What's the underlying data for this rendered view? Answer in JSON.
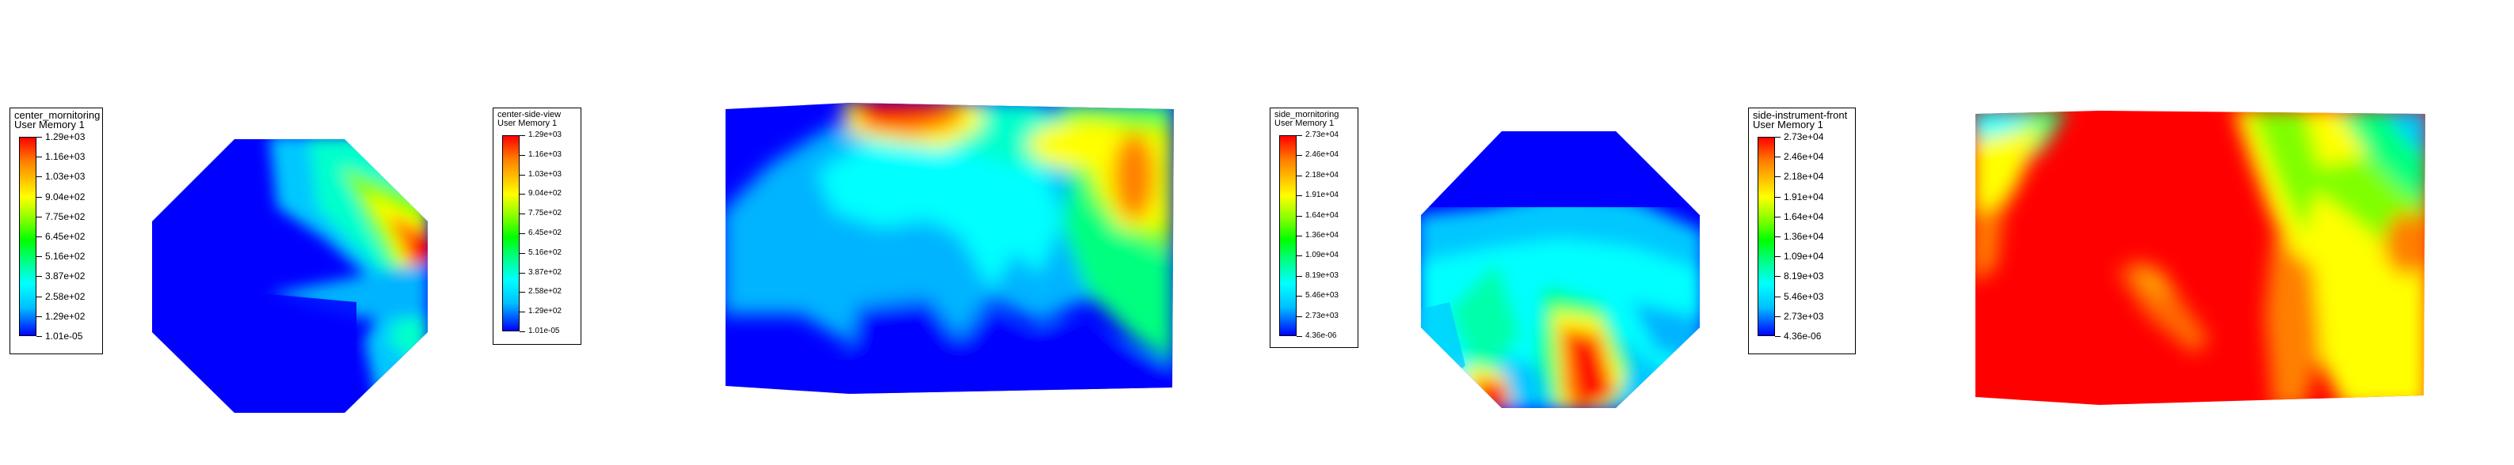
{
  "panels": [
    {
      "legend": {
        "title_line1": "center_mornitoring",
        "title_line2": "User Memory 1",
        "ticks": [
          "1.29e+03",
          "1.16e+03",
          "1.03e+03",
          "9.04e+02",
          "7.75e+02",
          "6.45e+02",
          "5.16e+02",
          "3.87e+02",
          "2.58e+02",
          "1.29e+02",
          "1.01e-05"
        ]
      }
    },
    {
      "legend": {
        "title_line1": "center-side-view",
        "title_line2": "User Memory 1",
        "ticks": [
          "1.29e+03",
          "1.16e+03",
          "1.03e+03",
          "9.04e+02",
          "7.75e+02",
          "6.45e+02",
          "5.16e+02",
          "3.87e+02",
          "2.58e+02",
          "1.29e+02",
          "1.01e-05"
        ]
      }
    },
    {
      "legend": {
        "title_line1": "side_mornitoring",
        "title_line2": "User Memory 1",
        "ticks": [
          "2.73e+04",
          "2.46e+04",
          "2.18e+04",
          "1.91e+04",
          "1.64e+04",
          "1.36e+04",
          "1.09e+04",
          "8.19e+03",
          "5.46e+03",
          "2.73e+03",
          "4.36e-06"
        ]
      }
    },
    {
      "legend": {
        "title_line1": "side-instrument-front",
        "title_line2": "User Memory 1",
        "ticks": [
          "2.73e+04",
          "2.46e+04",
          "2.18e+04",
          "1.91e+04",
          "1.64e+04",
          "1.36e+04",
          "1.09e+04",
          "8.19e+03",
          "5.46e+03",
          "2.73e+03",
          "4.36e-06"
        ]
      }
    }
  ],
  "colors": {
    "red": "#ff0000",
    "orange": "#ff8000",
    "yellow": "#ffff00",
    "green": "#00ff00",
    "cyan": "#00ffff",
    "lightblue": "#00c8ff",
    "blue": "#0000ff"
  }
}
